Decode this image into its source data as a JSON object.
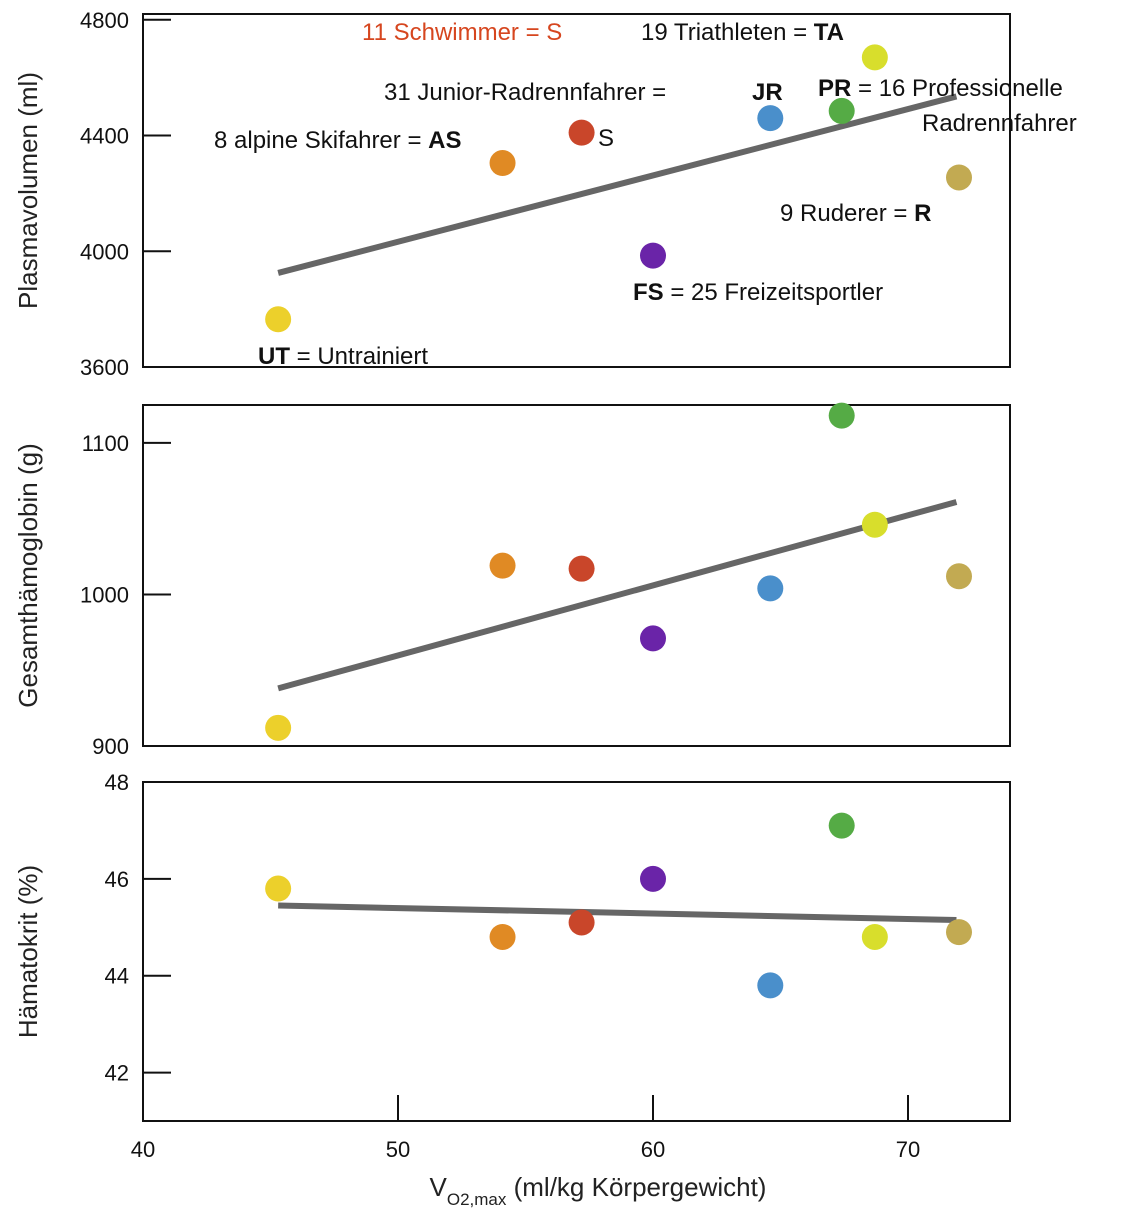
{
  "chart_data": {
    "type": "scatter",
    "xlabel": {
      "main": "V",
      "sub": "O2,max",
      "unit": " (ml/kg Körpergewicht)"
    },
    "xlim": [
      40,
      74
    ],
    "xticks": [
      "40",
      "50",
      "60",
      "70"
    ],
    "groups": [
      {
        "code": "UT",
        "color": "#ecd02b"
      },
      {
        "code": "AS",
        "color": "#e08a24"
      },
      {
        "code": "S",
        "color": "#c9462a"
      },
      {
        "code": "FS",
        "color": "#6a24a8"
      },
      {
        "code": "JR",
        "color": "#4a8fcb"
      },
      {
        "code": "PR",
        "color": "#55ab45"
      },
      {
        "code": "TA",
        "color": "#d8de2c"
      },
      {
        "code": "R",
        "color": "#c2aa52"
      }
    ],
    "panels": [
      {
        "ylabel": "Plasmavolumen (ml)",
        "ylim": [
          3600,
          4820
        ],
        "yticks": [
          "3600",
          "4000",
          "4400",
          "4800"
        ],
        "points": [
          {
            "group": "UT",
            "x": 45.3,
            "y": 3765
          },
          {
            "group": "AS",
            "x": 54.1,
            "y": 4305
          },
          {
            "group": "S",
            "x": 57.2,
            "y": 4410
          },
          {
            "group": "FS",
            "x": 60.0,
            "y": 3985
          },
          {
            "group": "JR",
            "x": 64.6,
            "y": 4460
          },
          {
            "group": "PR",
            "x": 67.4,
            "y": 4485
          },
          {
            "group": "TA",
            "x": 68.7,
            "y": 4670
          },
          {
            "group": "R",
            "x": 72.0,
            "y": 4255
          }
        ],
        "trend": [
          [
            45.3,
            3925
          ],
          [
            71.9,
            4535
          ]
        ]
      },
      {
        "ylabel": "Gesamthämoglobin (g)",
        "ylim": [
          900,
          1125
        ],
        "yticks": [
          "900",
          "1000",
          "1100"
        ],
        "points": [
          {
            "group": "UT",
            "x": 45.3,
            "y": 912
          },
          {
            "group": "AS",
            "x": 54.1,
            "y": 1019
          },
          {
            "group": "S",
            "x": 57.2,
            "y": 1017
          },
          {
            "group": "FS",
            "x": 60.0,
            "y": 971
          },
          {
            "group": "JR",
            "x": 64.6,
            "y": 1004
          },
          {
            "group": "PR",
            "x": 67.4,
            "y": 1118
          },
          {
            "group": "TA",
            "x": 68.7,
            "y": 1046
          },
          {
            "group": "R",
            "x": 72.0,
            "y": 1012
          }
        ],
        "trend": [
          [
            45.3,
            938
          ],
          [
            71.9,
            1061
          ]
        ]
      },
      {
        "ylabel": "Hämatokrit (%)",
        "ylim": [
          41.0,
          48.0
        ],
        "yticks": [
          "42",
          "44",
          "46",
          "48"
        ],
        "points": [
          {
            "group": "UT",
            "x": 45.3,
            "y": 45.8
          },
          {
            "group": "AS",
            "x": 54.1,
            "y": 44.8
          },
          {
            "group": "S",
            "x": 57.2,
            "y": 45.1
          },
          {
            "group": "FS",
            "x": 60.0,
            "y": 46.0
          },
          {
            "group": "JR",
            "x": 64.6,
            "y": 43.8
          },
          {
            "group": "PR",
            "x": 67.4,
            "y": 47.1
          },
          {
            "group": "TA",
            "x": 68.7,
            "y": 44.8
          },
          {
            "group": "R",
            "x": 72.0,
            "y": 44.9
          }
        ],
        "trend": [
          [
            45.3,
            45.45
          ],
          [
            71.9,
            45.15
          ]
        ]
      }
    ],
    "annotations": [
      {
        "pre": "11 Schwimmer = S",
        "code": "",
        "post": "",
        "red": true
      },
      {
        "pre": "19 Triathleten =  ",
        "code": "TA",
        "post": ""
      },
      {
        "pre": "31 Junior-Radrennfahrer =  ",
        "code": "",
        "post": ""
      },
      {
        "pre": "",
        "code": "JR",
        "post": ""
      },
      {
        "pre": "",
        "code": "PR",
        "post": " = 16 Professionelle"
      },
      {
        "pre": "Radrennfahrer",
        "code": "",
        "post": ""
      },
      {
        "pre": "8 alpine Skifahrer =  ",
        "code": "AS",
        "post": ""
      },
      {
        "pre": "S",
        "code": "",
        "post": ""
      },
      {
        "pre": "9 Ruderer =  ",
        "code": "R",
        "post": ""
      },
      {
        "pre": "",
        "code": "FS",
        "post": " = 25 Freizeitsportler"
      },
      {
        "pre": "",
        "code": "UT",
        "post": " = Untrainiert"
      }
    ]
  }
}
